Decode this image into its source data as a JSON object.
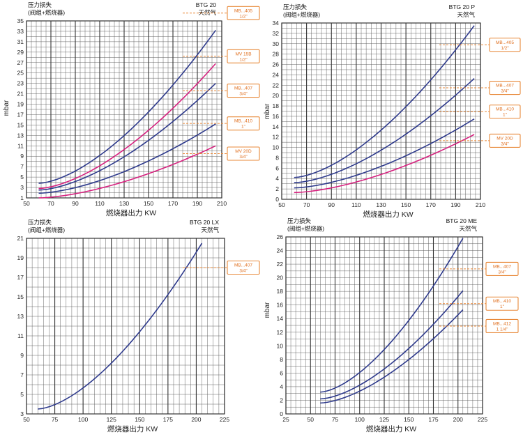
{
  "colors": {
    "navy": "#2e3a8c",
    "magenta": "#d6207e",
    "orange": "#e8893a",
    "grid": "#555555",
    "background": "#ffffff"
  },
  "chart_data": [
    {
      "type": "line",
      "title_left": "压力损失",
      "subtitle_left": "(阀组+燃烧器)",
      "title_right": "BTG 20",
      "subtitle_right": "天然气",
      "xlabel": "燃烧器出力 KW",
      "ylabel": "mbar",
      "xlim": [
        50,
        210
      ],
      "ylim": [
        1,
        35
      ],
      "xticks": [
        50,
        70,
        90,
        110,
        130,
        150,
        170,
        190,
        210
      ],
      "yticks": [
        1,
        3,
        5,
        7,
        9,
        11,
        13,
        15,
        17,
        19,
        21,
        23,
        25,
        27,
        29,
        31,
        33,
        35
      ],
      "series": [
        {
          "name": "MB...405 1/2\"",
          "label_line1": "MB...405",
          "label_line2": "1/2\"",
          "color": "navy",
          "label_y": 36.5,
          "x": [
            60,
            205
          ],
          "y": [
            3.8,
            33.2
          ]
        },
        {
          "name": "MV 15B 1/2\"",
          "label_line1": "MV 15B",
          "label_line2": "1/2\"",
          "color": "magenta",
          "label_y": 28.2,
          "x": [
            60,
            205
          ],
          "y": [
            2.8,
            26.8
          ]
        },
        {
          "name": "MB...407 3/4\"",
          "label_line1": "MB...407",
          "label_line2": "3/4\"",
          "color": "navy",
          "label_y": 21.6,
          "x": [
            60,
            205
          ],
          "y": [
            2.5,
            23.0
          ]
        },
        {
          "name": "MB...410 1\"",
          "label_line1": "MB...410",
          "label_line2": "1\"",
          "color": "navy",
          "label_y": 15.3,
          "x": [
            60,
            205
          ],
          "y": [
            1.9,
            15.2
          ]
        },
        {
          "name": "MV 20D 3/4\"",
          "label_line1": "MV 20D",
          "label_line2": "3/4\"",
          "color": "magenta",
          "label_y": 9.5,
          "x": [
            60,
            205
          ],
          "y": [
            1.0,
            11.0
          ]
        }
      ]
    },
    {
      "type": "line",
      "title_left": "压力损失",
      "subtitle_left": "(阀组+燃烧器)",
      "title_right": "BTG 20 P",
      "subtitle_right": "天然气",
      "xlabel": "燃烧器出力 KW",
      "ylabel": "mbar",
      "xlim": [
        50,
        210
      ],
      "ylim": [
        0,
        34
      ],
      "xticks": [
        50,
        70,
        90,
        110,
        130,
        150,
        170,
        190,
        210
      ],
      "yticks": [
        0,
        2,
        4,
        6,
        8,
        10,
        12,
        14,
        16,
        18,
        20,
        22,
        24,
        26,
        28,
        30,
        32,
        34
      ],
      "series": [
        {
          "name": "MB...405 1/2\"",
          "label_line1": "MB...405",
          "label_line2": "1/2\"",
          "color": "navy",
          "label_y": 29.8,
          "x": [
            60,
            205
          ],
          "y": [
            4.2,
            33.5
          ]
        },
        {
          "name": "MB...407 3/4\"",
          "label_line1": "MB...407",
          "label_line2": "3/4\"",
          "color": "navy",
          "label_y": 21.5,
          "x": [
            60,
            205
          ],
          "y": [
            3.2,
            23.3
          ]
        },
        {
          "name": "MB...410 1\"",
          "label_line1": "MB...410",
          "label_line2": "1\"",
          "color": "navy",
          "label_y": 16.9,
          "x": [
            60,
            205
          ],
          "y": [
            2.2,
            15.5
          ]
        },
        {
          "name": "MV 20D 3/4\"",
          "label_line1": "MV 20D",
          "label_line2": "3/4\"",
          "color": "magenta",
          "label_y": 11.3,
          "x": [
            60,
            205
          ],
          "y": [
            1.3,
            12.5
          ]
        }
      ]
    },
    {
      "type": "line",
      "title_left": "压力损失",
      "subtitle_left": "(阀组+燃烧器)",
      "title_right": "BTG 20 LX",
      "subtitle_right": "天然气",
      "xlabel": "燃烧器出力 KW",
      "ylabel": "",
      "xlim": [
        50,
        225
      ],
      "ylim": [
        3,
        21
      ],
      "xticks": [
        50,
        75,
        100,
        125,
        150,
        175,
        200,
        225
      ],
      "yticks": [
        3,
        5,
        7,
        9,
        11,
        13,
        15,
        17,
        19,
        21
      ],
      "series": [
        {
          "name": "MB...407 3/4\"",
          "label_line1": "MB...407",
          "label_line2": "3/4\"",
          "color": "navy",
          "label_y": 18.0,
          "x": [
            60,
            205
          ],
          "y": [
            3.5,
            20.5
          ]
        }
      ]
    },
    {
      "type": "line",
      "title_left": "压力损失",
      "subtitle_left": "(阀组+燃烧器)",
      "title_right": "BTG 20 ME",
      "subtitle_right": "天然气",
      "xlabel": "燃烧器出力 KW",
      "ylabel": "mbar",
      "xlim": [
        25,
        225
      ],
      "ylim": [
        0,
        26
      ],
      "xticks": [
        25,
        50,
        75,
        100,
        125,
        150,
        175,
        200,
        225
      ],
      "yticks": [
        0,
        2,
        4,
        6,
        8,
        10,
        12,
        14,
        16,
        18,
        20,
        22,
        24,
        26
      ],
      "series": [
        {
          "name": "MB...407 3/4\"",
          "label_line1": "MB...407",
          "label_line2": "3/4\"",
          "color": "navy",
          "label_y": 21.3,
          "x": [
            60,
            205
          ],
          "y": [
            3.2,
            25.8
          ]
        },
        {
          "name": "MB...410 1\"",
          "label_line1": "MB...410",
          "label_line2": "1\"",
          "color": "navy",
          "label_y": 16.2,
          "x": [
            60,
            205
          ],
          "y": [
            2.2,
            18.1
          ]
        },
        {
          "name": "MB...412 1 1/4\"",
          "label_line1": "MB...412",
          "label_line2": "1 1/4\"",
          "color": "navy",
          "label_y": 12.9,
          "x": [
            60,
            205
          ],
          "y": [
            1.6,
            15.3
          ]
        }
      ]
    }
  ]
}
